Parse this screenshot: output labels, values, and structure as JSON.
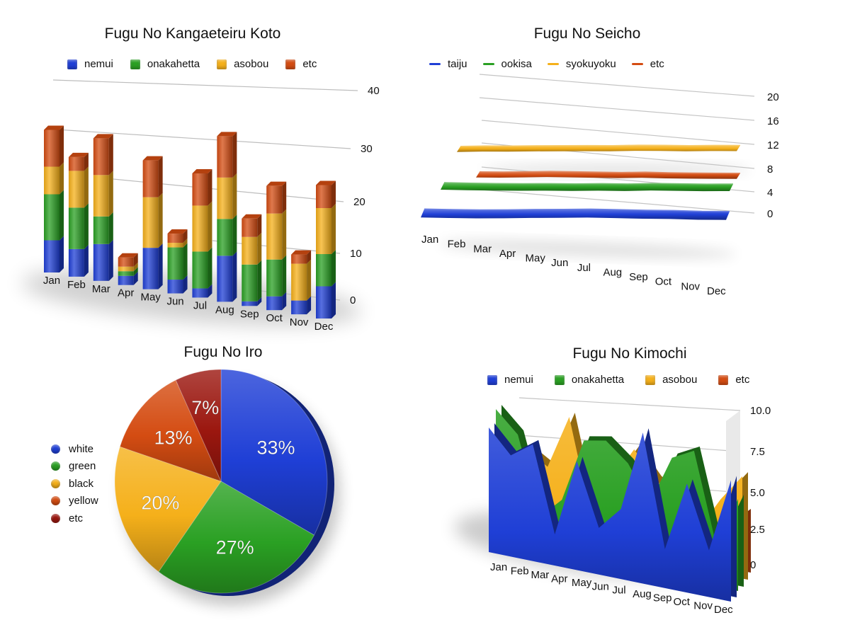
{
  "colors": {
    "blue": "#1f3fd6",
    "green": "#2aa023",
    "orange": "#f5b01a",
    "red": "#d44c12",
    "darkred": "#9b170f"
  },
  "chart_data": [
    {
      "type": "bar",
      "title": "Fugu No Kangaeteiru Koto",
      "stacked": true,
      "categories": [
        "Jan",
        "Feb",
        "Mar",
        "Apr",
        "May",
        "Jun",
        "Jul",
        "Aug",
        "Sep",
        "Oct",
        "Nov",
        "Dec"
      ],
      "series": [
        {
          "name": "nemui",
          "values": [
            7,
            6,
            8,
            2,
            9,
            3,
            2,
            10,
            1,
            3,
            3,
            7
          ]
        },
        {
          "name": "onakahetta",
          "values": [
            10,
            9,
            6,
            1,
            0,
            7,
            8,
            8,
            8,
            8,
            0,
            7
          ]
        },
        {
          "name": "asobou",
          "values": [
            6,
            8,
            9,
            1,
            11,
            1,
            10,
            9,
            6,
            10,
            8,
            10
          ]
        },
        {
          "name": "etc",
          "values": [
            8,
            3,
            8,
            2,
            8,
            2,
            7,
            9,
            4,
            6,
            2,
            5
          ]
        }
      ],
      "y_ticks": [
        "40",
        "30",
        "20",
        "10",
        "0"
      ],
      "ylim": [
        0,
        40
      ],
      "legend": "top"
    },
    {
      "type": "line",
      "title": "Fugu No Seicho",
      "categories": [
        "Jan",
        "Feb",
        "Mar",
        "Apr",
        "May",
        "Jun",
        "Jul",
        "Aug",
        "Sep",
        "Oct",
        "Nov",
        "Dec"
      ],
      "series": [
        {
          "name": "taiju",
          "values": [
            1.5,
            1.3,
            1.2,
            1.3,
            1.5,
            1.6,
            1.8,
            1.6,
            1.4,
            1.3,
            1.0,
            1.0
          ]
        },
        {
          "name": "ookisa",
          "values": [
            5.5,
            5.3,
            5.2,
            5.2,
            5.3,
            5.2,
            5.4,
            5.3,
            5.6,
            5.5,
            5.4,
            5.5
          ]
        },
        {
          "name": "syokuyoku",
          "values": [
            12.5,
            12.8,
            12.8,
            13.0,
            13.1,
            13.2,
            13.2,
            13.5,
            13.5,
            13.4,
            13.6,
            13.6
          ]
        },
        {
          "name": "etc",
          "values": [
            7.0,
            7.0,
            7.2,
            7.4,
            7.3,
            7.2,
            7.1,
            7.3,
            7.1,
            7.0,
            7.0,
            7.0
          ]
        }
      ],
      "y_ticks": [
        "20",
        "16",
        "12",
        "8",
        "4",
        "0"
      ],
      "ylim": [
        0,
        20
      ],
      "legend": "top"
    },
    {
      "type": "pie",
      "title": "Fugu No Iro",
      "labels": [
        "white",
        "green",
        "black",
        "yellow",
        "etc"
      ],
      "values": [
        33,
        27,
        20,
        13,
        7
      ],
      "value_labels": [
        "33%",
        "27%",
        "20%",
        "13%",
        "7%"
      ],
      "legend": "left"
    },
    {
      "type": "area",
      "title": "Fugu No Kimochi",
      "categories": [
        "Jan",
        "Feb",
        "Mar",
        "Apr",
        "May",
        "Jun",
        "Jul",
        "Aug",
        "Sep",
        "Oct",
        "Nov",
        "Dec"
      ],
      "series": [
        {
          "name": "nemui",
          "values": [
            8,
            6.5,
            7.5,
            2,
            7,
            3,
            4.5,
            9.7,
            2.5,
            7,
            3,
            7.8
          ]
        },
        {
          "name": "onakahetta",
          "values": [
            9.5,
            8,
            2.5,
            4,
            8.5,
            8.8,
            7.5,
            5,
            8.5,
            9.3,
            3,
            6.5
          ]
        },
        {
          "name": "asobou",
          "values": [
            6,
            7,
            6,
            10,
            3,
            6,
            8.5,
            6.5,
            5.5,
            3.5,
            6,
            8
          ]
        },
        {
          "name": "etc",
          "values": [
            5,
            4,
            5,
            6.5,
            4.5,
            3.5,
            5,
            6,
            4,
            3,
            3.5,
            5
          ]
        }
      ],
      "y_ticks": [
        "10.0",
        "7.5",
        "5.0",
        "2.5",
        "0"
      ],
      "ylim": [
        0,
        10
      ],
      "legend": "top"
    }
  ]
}
